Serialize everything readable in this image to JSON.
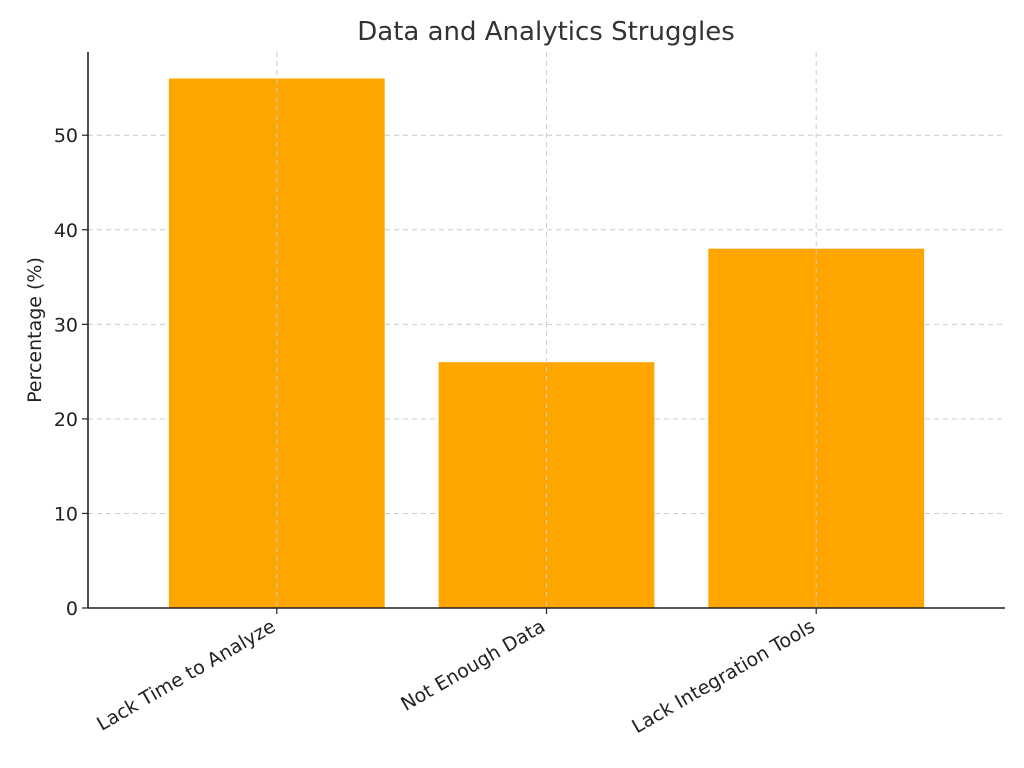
{
  "chart_data": {
    "type": "bar",
    "title": "Data and Analytics Struggles",
    "xlabel": "",
    "ylabel": "Percentage (%)",
    "categories": [
      "Lack Time to Analyze",
      "Not Enough Data",
      "Lack Integration Tools"
    ],
    "values": [
      56,
      26,
      38
    ],
    "ylim": [
      0,
      58.8
    ],
    "yticks": [
      0,
      10,
      20,
      30,
      40,
      50
    ],
    "bar_color": "#FFA500",
    "grid": true
  }
}
